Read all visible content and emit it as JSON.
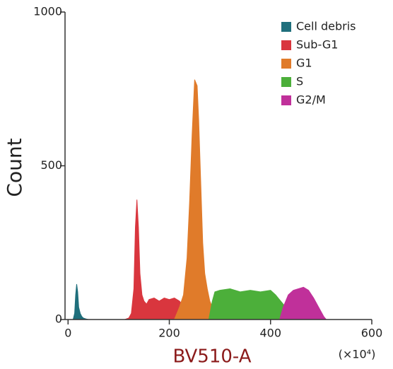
{
  "chart_data": {
    "type": "area",
    "xlabel": "BV510-A",
    "ylabel": "Count",
    "annotation": "(×10⁴)",
    "xlim": [
      -6,
      600
    ],
    "ylim": [
      0,
      1000
    ],
    "xticks": [
      0,
      200,
      400,
      600
    ],
    "yticks": [
      0,
      500,
      1000
    ],
    "legend": "upper right",
    "series": [
      {
        "name": "Cell debris",
        "color": "#1f6f7c",
        "x": [
          10,
          13,
          15,
          17,
          19,
          21,
          24,
          27,
          30,
          35,
          40
        ],
        "values": [
          0,
          20,
          80,
          115,
          90,
          40,
          20,
          10,
          5,
          2,
          0
        ]
      },
      {
        "name": "Sub-G1",
        "color": "#d9363e",
        "x": [
          112,
          120,
          125,
          130,
          133,
          136,
          139,
          142,
          146,
          150,
          155,
          160,
          170,
          180,
          190,
          200,
          210,
          220,
          230,
          240
        ],
        "values": [
          0,
          5,
          20,
          100,
          300,
          390,
          300,
          150,
          80,
          60,
          50,
          65,
          70,
          60,
          70,
          65,
          70,
          60,
          40,
          0
        ]
      },
      {
        "name": "G1",
        "color": "#e07b2a",
        "x": [
          210,
          220,
          228,
          235,
          240,
          245,
          250,
          255,
          258,
          262,
          266,
          270,
          275,
          280,
          290,
          295
        ],
        "values": [
          0,
          40,
          80,
          200,
          380,
          600,
          780,
          760,
          650,
          450,
          250,
          150,
          100,
          60,
          20,
          0
        ]
      },
      {
        "name": "S",
        "color": "#4caf3a",
        "x": [
          278,
          285,
          290,
          300,
          320,
          340,
          360,
          380,
          400,
          410,
          420,
          430,
          438
        ],
        "values": [
          0,
          60,
          90,
          95,
          100,
          90,
          95,
          90,
          95,
          80,
          60,
          40,
          0
        ]
      },
      {
        "name": "G2/M",
        "color": "#c0309a",
        "x": [
          418,
          425,
          435,
          445,
          455,
          465,
          475,
          485,
          495,
          505,
          510
        ],
        "values": [
          0,
          40,
          80,
          95,
          100,
          105,
          95,
          70,
          40,
          10,
          0
        ]
      }
    ]
  }
}
